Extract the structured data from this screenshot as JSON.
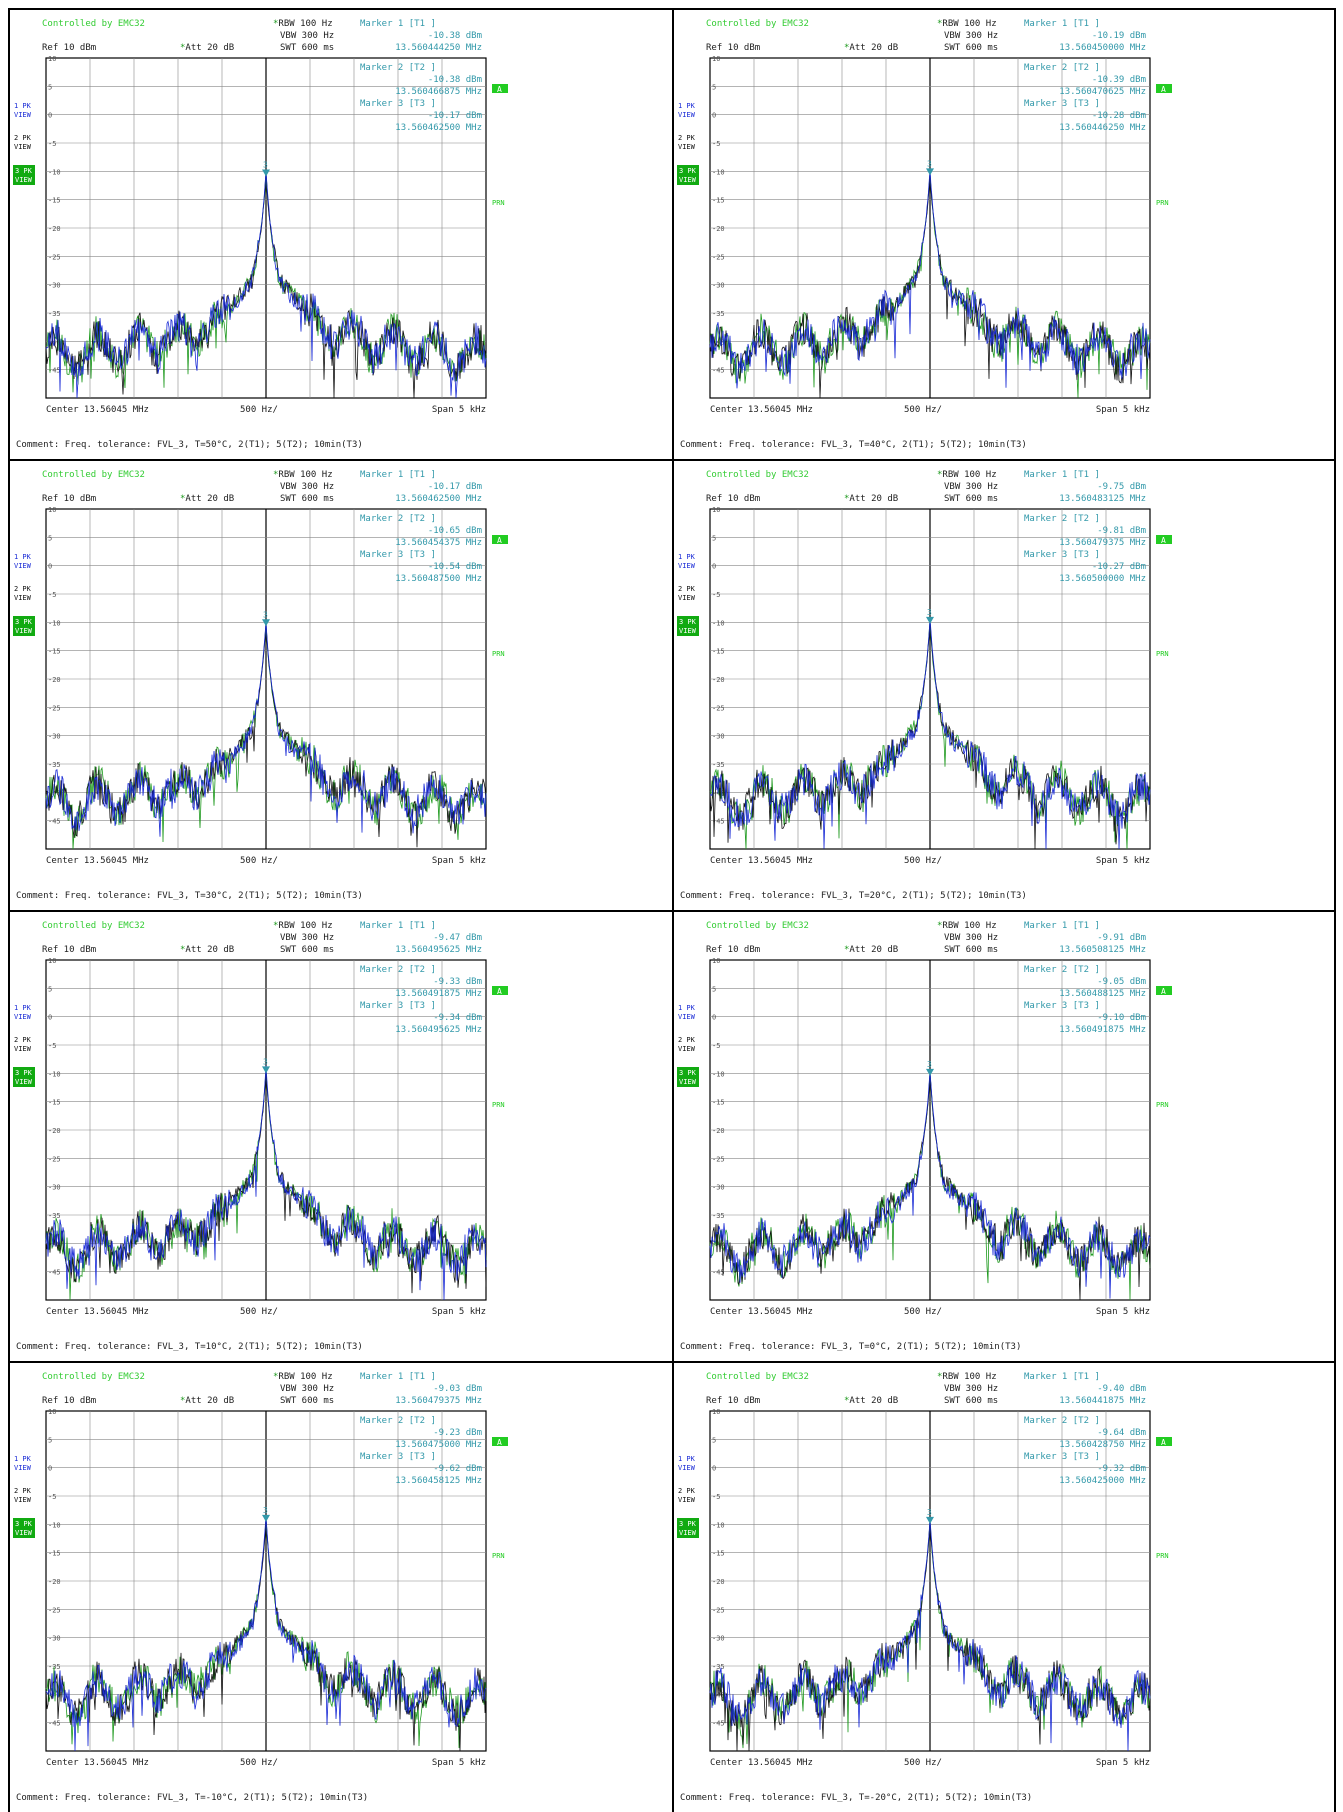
{
  "colors": {
    "controlled": "#33cc33",
    "marker_text": "#3399aa",
    "trace1": "#1a2bd6",
    "trace2": "#111111",
    "trace3": "#1f9a1f",
    "green_badge": "#11aa11",
    "grid": "#888888"
  },
  "common": {
    "controlled_by": "Controlled by EMC32",
    "rbw": "RBW 100 Hz",
    "vbw": "VBW 300 Hz",
    "swt": "SWT 600 ms",
    "ref": "Ref  10 dBm",
    "att": "Att  20 dB",
    "center": "Center 13.56045 MHz",
    "span": "Span 5 kHz",
    "div": "500 Hz/",
    "marker1_title": "Marker 1 [T1 ]",
    "marker2_title": "Marker 2 [T2 ]",
    "marker3_title": "Marker 3 [T3 ]",
    "side_labels": [
      {
        "line1": "1 PK",
        "line2": "VIEW"
      },
      {
        "line1": "2 PK",
        "line2": "VIEW"
      },
      {
        "line1": "3 PK",
        "line2": "VIEW"
      }
    ],
    "badge_a": "A",
    "badge_prn": "PRN",
    "y_ticks": [
      "10",
      "5",
      "0",
      "-5",
      "-10",
      "-15",
      "-20",
      "-25",
      "-30",
      "-35",
      "-40",
      "-45"
    ]
  },
  "panels": [
    {
      "comment": "Comment: Freq. tolerance: FVL_3, T=50°C, 2(T1); 5(T2); 10min(T3)",
      "m1_level": "-10.38 dBm",
      "m1_freq": "13.560444250 MHz",
      "m2_level": "-10.38 dBm",
      "m2_freq": "13.560466875 MHz",
      "m3_level": "-10.17 dBm",
      "m3_freq": "13.560462500 MHz"
    },
    {
      "comment": "Comment: Freq. tolerance: FVL_3, T=40°C, 2(T1); 5(T2); 10min(T3)",
      "m1_level": "-10.19 dBm",
      "m1_freq": "13.560450000 MHz",
      "m2_level": "-10.39 dBm",
      "m2_freq": "13.560470625 MHz",
      "m3_level": "-10.28 dBm",
      "m3_freq": "13.560446250 MHz"
    },
    {
      "comment": "Comment: Freq. tolerance: FVL_3, T=30°C, 2(T1); 5(T2); 10min(T3)",
      "m1_level": "-10.17 dBm",
      "m1_freq": "13.560462500 MHz",
      "m2_level": "-10.65 dBm",
      "m2_freq": "13.560454375 MHz",
      "m3_level": "-10.54 dBm",
      "m3_freq": "13.560487500 MHz"
    },
    {
      "comment": "Comment: Freq. tolerance: FVL_3, T=20°C, 2(T1); 5(T2); 10min(T3)",
      "m1_level": "-9.75 dBm",
      "m1_freq": "13.560483125 MHz",
      "m2_level": "-9.81 dBm",
      "m2_freq": "13.560479375 MHz",
      "m3_level": "-10.27 dBm",
      "m3_freq": "13.560500000 MHz"
    },
    {
      "comment": "Comment: Freq. tolerance: FVL_3, T=10°C, 2(T1); 5(T2); 10min(T3)",
      "m1_level": "-9.47 dBm",
      "m1_freq": "13.560495625 MHz",
      "m2_level": "-9.33 dBm",
      "m2_freq": "13.560491875 MHz",
      "m3_level": "-9.34 dBm",
      "m3_freq": "13.560495625 MHz"
    },
    {
      "comment": "Comment: Freq. tolerance: FVL_3, T=0°C, 2(T1); 5(T2); 10min(T3)",
      "m1_level": "-9.91 dBm",
      "m1_freq": "13.560508125 MHz",
      "m2_level": "-9.05 dBm",
      "m2_freq": "13.560488125 MHz",
      "m3_level": "-9.10 dBm",
      "m3_freq": "13.560491875 MHz"
    },
    {
      "comment": "Comment: Freq. tolerance: FVL_3, T=-10°C, 2(T1); 5(T2); 10min(T3)",
      "m1_level": "-9.03 dBm",
      "m1_freq": "13.560479375 MHz",
      "m2_level": "-9.23 dBm",
      "m2_freq": "13.560475000 MHz",
      "m3_level": "-9.62 dBm",
      "m3_freq": "13.560458125 MHz"
    },
    {
      "comment": "Comment: Freq. tolerance: FVL_3, T=-20°C, 2(T1); 5(T2); 10min(T3)",
      "m1_level": "-9.40 dBm",
      "m1_freq": "13.560441875 MHz",
      "m2_level": "-9.64 dBm",
      "m2_freq": "13.560428750 MHz",
      "m3_level": "-9.32 dBm",
      "m3_freq": "13.560425000 MHz"
    }
  ],
  "chart_data": [
    {
      "type": "line",
      "title": "",
      "xlabel": "",
      "ylabel": "",
      "ylim": [
        -50,
        10
      ],
      "x_center_mhz": 13.56045,
      "span_khz": 5,
      "peak_dbm": -10.38,
      "peak_offset_hz": 0
    },
    {
      "type": "line",
      "title": "",
      "xlabel": "",
      "ylabel": "",
      "ylim": [
        -50,
        10
      ],
      "x_center_mhz": 13.56045,
      "span_khz": 5,
      "peak_dbm": -10.19,
      "peak_offset_hz": 0
    },
    {
      "type": "line",
      "title": "",
      "xlabel": "",
      "ylabel": "",
      "ylim": [
        -50,
        10
      ],
      "x_center_mhz": 13.56045,
      "span_khz": 5,
      "peak_dbm": -10.17,
      "peak_offset_hz": 0
    },
    {
      "type": "line",
      "title": "",
      "xlabel": "",
      "ylabel": "",
      "ylim": [
        -50,
        10
      ],
      "x_center_mhz": 13.56045,
      "span_khz": 5,
      "peak_dbm": -9.75,
      "peak_offset_hz": 0
    },
    {
      "type": "line",
      "title": "",
      "xlabel": "",
      "ylabel": "",
      "ylim": [
        -50,
        10
      ],
      "x_center_mhz": 13.56045,
      "span_khz": 5,
      "peak_dbm": -9.47,
      "peak_offset_hz": 0
    },
    {
      "type": "line",
      "title": "",
      "xlabel": "",
      "ylabel": "",
      "ylim": [
        -50,
        10
      ],
      "x_center_mhz": 13.56045,
      "span_khz": 5,
      "peak_dbm": -9.91,
      "peak_offset_hz": 0
    },
    {
      "type": "line",
      "title": "",
      "xlabel": "",
      "ylabel": "",
      "ylim": [
        -50,
        10
      ],
      "x_center_mhz": 13.56045,
      "span_khz": 5,
      "peak_dbm": -9.03,
      "peak_offset_hz": 0
    },
    {
      "type": "line",
      "title": "",
      "xlabel": "",
      "ylabel": "",
      "ylim": [
        -50,
        10
      ],
      "x_center_mhz": 13.56045,
      "span_khz": 5,
      "peak_dbm": -9.4,
      "peak_offset_hz": 0
    }
  ]
}
